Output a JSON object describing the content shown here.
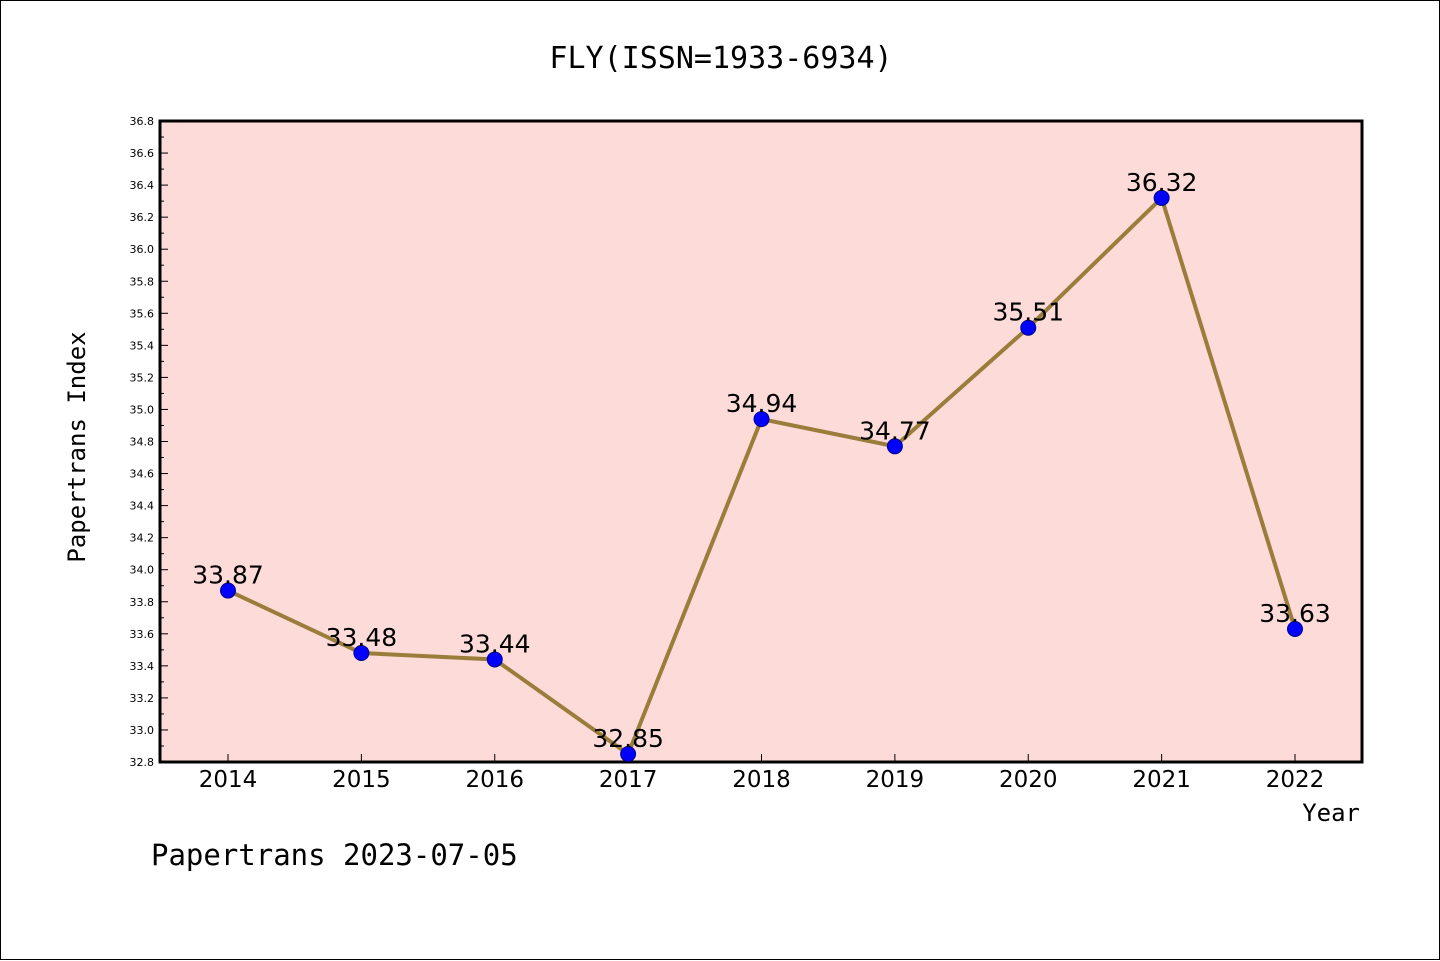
{
  "chart_data": {
    "type": "line",
    "title": "FLY(ISSN=1933-6934)",
    "xlabel": "Year",
    "ylabel": "Papertrans Index",
    "categories": [
      "2014",
      "2015",
      "2016",
      "2017",
      "2018",
      "2019",
      "2020",
      "2021",
      "2022"
    ],
    "series": [
      {
        "values": [
          33.87,
          33.48,
          33.44,
          32.85,
          34.94,
          34.77,
          35.51,
          36.32,
          33.63
        ],
        "data_labels": [
          "33.87",
          "33.48",
          "33.44",
          "32.85",
          "34.94",
          "34.77",
          "35.51",
          "36.32",
          "33.63"
        ]
      }
    ],
    "ylim": [
      32.8,
      36.8
    ],
    "yticks": [
      "32.8",
      "33.0",
      "33.2",
      "33.4",
      "33.6",
      "33.8",
      "34.0",
      "34.2",
      "34.4",
      "34.6",
      "34.8",
      "35.0",
      "35.2",
      "35.4",
      "35.6",
      "35.8",
      "36.0",
      "36.2",
      "36.4",
      "36.6",
      "36.8"
    ],
    "grid": false,
    "legend": "none",
    "colors": {
      "plot_background": "#fddbd9",
      "line": "#9a7d3a",
      "marker_fill": "#0000ff",
      "marker_stroke": "#00008b",
      "axis": "#000000"
    }
  },
  "footer": {
    "text": "Papertrans 2023-07-05"
  }
}
